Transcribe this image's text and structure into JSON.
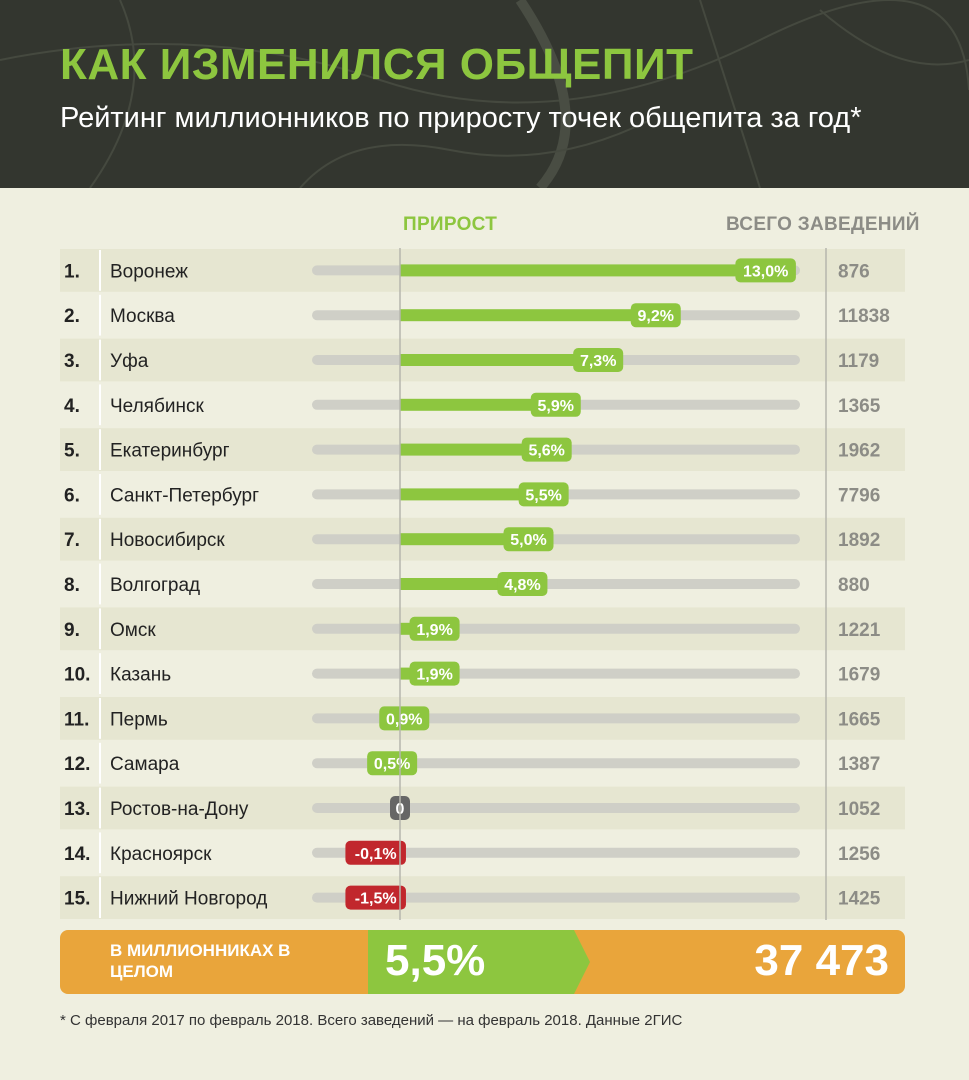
{
  "header": {
    "title": "КАК ИЗМЕНИЛСЯ ОБЩЕПИТ",
    "subtitle": "Рейтинг миллионников по приросту точек общепита за год*"
  },
  "columns": {
    "growth": "ПРИРОСТ",
    "total": "ВСЕГО ЗАВЕДЕНИЙ"
  },
  "colors": {
    "positive": "#8dc63f",
    "negative": "#c1272d",
    "zero": "#666666",
    "track": "#cfcfc7",
    "summary": "#e9a53b"
  },
  "chart_data": {
    "type": "bar",
    "categories": [
      "Воронеж",
      "Москва",
      "Уфа",
      "Челябинск",
      "Екатеринбург",
      "Санкт-Петербург",
      "Новосибирск",
      "Волгоград",
      "Омск",
      "Казань",
      "Пермь",
      "Самара",
      "Ростов-на-Дону",
      "Красноярск",
      "Нижний Новгород"
    ],
    "ranks": [
      "1.",
      "2.",
      "3.",
      "4.",
      "5.",
      "6.",
      "7.",
      "8.",
      "9.",
      "10.",
      "11.",
      "12.",
      "13.",
      "14.",
      "15."
    ],
    "values": [
      13.0,
      9.2,
      7.3,
      5.9,
      5.6,
      5.5,
      5.0,
      4.8,
      1.9,
      1.9,
      0.9,
      0.5,
      0,
      -0.1,
      -1.5
    ],
    "value_labels": [
      "13,0%",
      "9,2%",
      "7,3%",
      "5,9%",
      "5,6%",
      "5,5%",
      "5,0%",
      "4,8%",
      "1,9%",
      "1,9%",
      "0,9%",
      "0,5%",
      "0",
      "-0,1%",
      "-1,5%"
    ],
    "totals": [
      "876",
      "11838",
      "1179",
      "1365",
      "1962",
      "7796",
      "1892",
      "880",
      "1221",
      "1679",
      "1665",
      "1387",
      "1052",
      "1256",
      "1425"
    ],
    "xlim": [
      -3,
      13
    ]
  },
  "summary": {
    "label": "В МИЛЛИОННИКАХ В ЦЕЛОМ",
    "growth": "5,5%",
    "total": "37 473"
  },
  "footnote": "* С февраля 2017 по февраль 2018. Всего заведений — на февраль 2018. Данные 2ГИС"
}
